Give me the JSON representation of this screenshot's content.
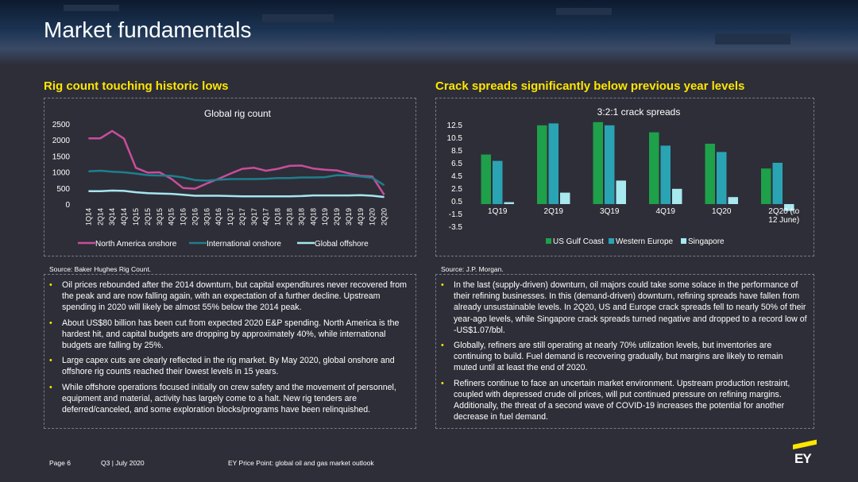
{
  "header": {
    "title": "Market fundamentals"
  },
  "left": {
    "heading": "Rig count touching historic lows",
    "source": "Source: Baker Hughes Rig Count.",
    "bullets": [
      "Oil prices rebounded after the 2014 downturn, but capital expenditures never recovered from the peak and are now falling again, with an expectation of a further decline. Upstream spending in 2020 will likely be almost 55% below the 2014 peak.",
      "About US$80 billion has been cut from expected 2020 E&P spending. North America is the hardest hit, and capital budgets are dropping by approximately 40%, while international budgets are falling by 25%.",
      "Large capex cuts are clearly reflected in the rig market. By May 2020, global onshore and offshore rig counts reached their lowest levels in 15 years.",
      "While offshore operations focused initially on crew safety and the movement of personnel, equipment and material, activity has largely come to a halt. New rig tenders are deferred/canceled, and some exploration blocks/programs have been relinquished."
    ]
  },
  "right": {
    "heading": "Crack spreads significantly below previous year levels",
    "source": "Source: J.P. Morgan.",
    "bullets": [
      "In the last (supply-driven) downturn, oil majors could take some solace in the performance of their refining businesses. In this (demand-driven) downturn, refining spreads have fallen from already unsustainable levels. In 2Q20, US and Europe crack spreads fell to nearly 50% of their year-ago levels, while Singapore crack spreads turned negative and dropped to a record low of -US$1.07/bbl.",
      "Globally, refiners are still operating at nearly 70% utilization levels, but inventories are continuing to build. Fuel demand is recovering gradually, but margins are likely to remain muted until at least the end of 2020.",
      "Refiners continue to face an uncertain market environment. Upstream production restraint, coupled with depressed crude oil prices, will put continued pressure on refining margins. Additionally, the threat of a second wave of COVID-19 increases the potential for another decrease in fuel demand."
    ]
  },
  "footer": {
    "page": "Page 6",
    "period": "Q3 | July 2020",
    "publication": "EY Price Point: global oil and gas market outlook",
    "logo_text": "EY"
  },
  "colors": {
    "accent_yellow": "#ffe600",
    "background": "#2e2e38",
    "north_america": "#c94d9b",
    "international": "#1f7f8c",
    "offshore": "#a6e6ef",
    "us_gulf": "#1fa04a",
    "western_europe": "#2aa3b3",
    "singapore": "#a8e8ef"
  },
  "chart_data": [
    {
      "type": "line",
      "title": "Global rig count",
      "categories": [
        "1Q14",
        "2Q14",
        "3Q14",
        "4Q14",
        "1Q15",
        "2Q15",
        "3Q15",
        "4Q15",
        "1Q16",
        "2Q16",
        "3Q16",
        "4Q16",
        "1Q17",
        "2Q17",
        "3Q17",
        "4Q17",
        "1Q18",
        "2Q18",
        "3Q18",
        "4Q18",
        "1Q19",
        "2Q19",
        "3Q19",
        "4Q19",
        "1Q20",
        "2Q20"
      ],
      "y_ticks": [
        "2500",
        "2000",
        "1500",
        "1000",
        "500",
        "0"
      ],
      "ylim": [
        0,
        2500
      ],
      "series": [
        {
          "name": "North America onshore",
          "values": [
            2050,
            2050,
            2280,
            2040,
            1130,
            980,
            990,
            790,
            500,
            480,
            640,
            790,
            950,
            1100,
            1130,
            1040,
            1100,
            1190,
            1200,
            1110,
            1070,
            1050,
            960,
            880,
            860,
            290
          ]
        },
        {
          "name": "International onshore",
          "values": [
            1020,
            1040,
            1010,
            990,
            950,
            900,
            890,
            880,
            830,
            750,
            730,
            760,
            780,
            780,
            780,
            790,
            810,
            810,
            830,
            830,
            840,
            900,
            890,
            860,
            820,
            590
          ]
        },
        {
          "name": "Global offshore",
          "values": [
            400,
            400,
            420,
            410,
            370,
            340,
            330,
            320,
            290,
            260,
            260,
            260,
            250,
            240,
            240,
            240,
            240,
            240,
            250,
            270,
            270,
            270,
            270,
            280,
            260,
            220
          ]
        }
      ],
      "legend": "bottom"
    },
    {
      "type": "bar",
      "title": "3:2:1 crack spreads",
      "categories": [
        "1Q19",
        "2Q19",
        "3Q19",
        "4Q19",
        "1Q20",
        "2Q20 (to 12 June)"
      ],
      "y_ticks": [
        "12.5",
        "10.5",
        "8.5",
        "6.5",
        "4.5",
        "2.5",
        "0.5",
        "-1.5",
        "-3.5"
      ],
      "ylim": [
        -3.5,
        12.5
      ],
      "series": [
        {
          "name": "US Gulf Coast",
          "values": [
            7.8,
            12.4,
            12.9,
            11.3,
            9.5,
            5.6
          ]
        },
        {
          "name": "Western Europe",
          "values": [
            6.8,
            12.7,
            12.4,
            9.2,
            8.2,
            6.5
          ]
        },
        {
          "name": "Singapore",
          "values": [
            0.3,
            1.8,
            3.7,
            2.4,
            1.1,
            -1.07
          ]
        }
      ],
      "legend": "bottom"
    }
  ]
}
